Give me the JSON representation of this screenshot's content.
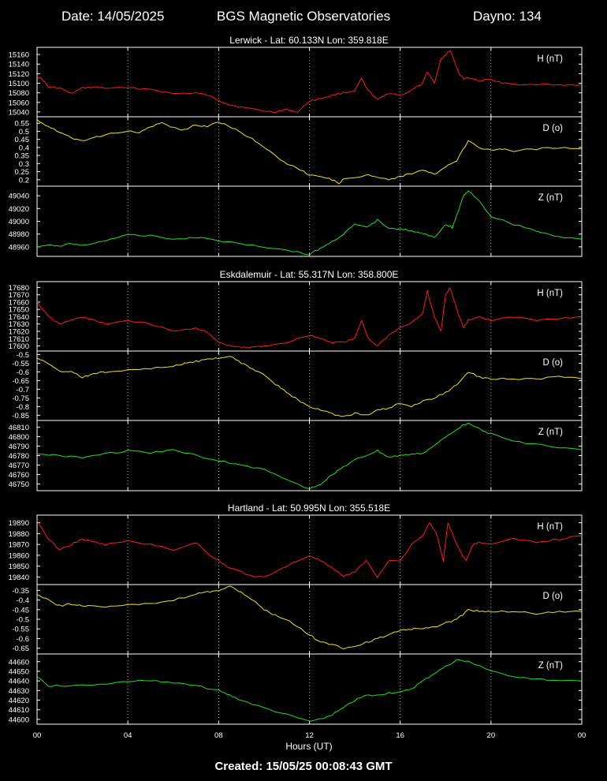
{
  "header": {
    "date": "Date: 14/05/2025",
    "title": "BGS Magnetic Observatories",
    "dayno": "Dayno: 134"
  },
  "footer": {
    "created": "Created: 15/05/25 00:08:43 GMT"
  },
  "xaxis": {
    "label": "Hours (UT)",
    "ticks": [
      "00",
      "04",
      "08",
      "12",
      "16",
      "20",
      "00"
    ],
    "range_hours": [
      0,
      24
    ]
  },
  "chart_data": [
    {
      "station": "Lerwick - Lat: 60.133N Lon: 359.818E",
      "panels": [
        {
          "type": "line",
          "label": "H (nT)",
          "color": "#ff1a1a",
          "ylim": [
            15030,
            15175
          ],
          "yticks": [
            "15160",
            "15140",
            "15120",
            "15100",
            "15080",
            "15060",
            "15040"
          ],
          "ytick_values": [
            15160,
            15140,
            15120,
            15100,
            15080,
            15060,
            15040
          ],
          "x": [
            0,
            0.3,
            0.5,
            1,
            1.5,
            2,
            2.5,
            3,
            4,
            5,
            6,
            7,
            7.5,
            8,
            8.5,
            9,
            10,
            10.5,
            11,
            11.5,
            12,
            12.5,
            13,
            13.5,
            14,
            14.3,
            14.5,
            14.7,
            15,
            15.5,
            16,
            16.5,
            17,
            17.2,
            17.5,
            17.8,
            18,
            18.2,
            18.4,
            18.6,
            18.8,
            19,
            19.5,
            20,
            20.5,
            21,
            22,
            23,
            24
          ],
          "y": [
            15115,
            15105,
            15092,
            15090,
            15078,
            15090,
            15092,
            15090,
            15090,
            15088,
            15078,
            15080,
            15075,
            15065,
            15055,
            15050,
            15042,
            15040,
            15045,
            15040,
            15063,
            15068,
            15075,
            15080,
            15085,
            15110,
            15090,
            15080,
            15065,
            15080,
            15075,
            15085,
            15100,
            15125,
            15100,
            15150,
            15160,
            15170,
            15145,
            15120,
            15110,
            15112,
            15105,
            15108,
            15100,
            15098,
            15098,
            15096,
            15097
          ]
        },
        {
          "type": "line",
          "label": "D (o)",
          "color": "#f0e020",
          "ylim": [
            0.16,
            0.59
          ],
          "yticks": [
            "0.55",
            "0.5",
            "0.45",
            "0.4",
            "0.35",
            "0.3",
            "0.25",
            "0.2"
          ],
          "ytick_values": [
            0.55,
            0.5,
            0.45,
            0.4,
            0.35,
            0.3,
            0.25,
            0.2
          ],
          "x": [
            0,
            0.5,
            1,
            1.5,
            2,
            2.5,
            3,
            4,
            4.5,
            5,
            5.5,
            6,
            6.5,
            7,
            7.5,
            8,
            8.5,
            9,
            9.5,
            10,
            10.5,
            11,
            11.5,
            12,
            12.5,
            13,
            13.3,
            13.5,
            14,
            14.5,
            15,
            15.5,
            16,
            16.5,
            17,
            17.5,
            18,
            18.5,
            19,
            19.5,
            20,
            20.5,
            21,
            22,
            23,
            24
          ],
          "y": [
            0.57,
            0.53,
            0.49,
            0.46,
            0.44,
            0.46,
            0.48,
            0.5,
            0.49,
            0.53,
            0.55,
            0.52,
            0.51,
            0.54,
            0.53,
            0.56,
            0.53,
            0.49,
            0.45,
            0.4,
            0.35,
            0.3,
            0.27,
            0.23,
            0.22,
            0.2,
            0.18,
            0.2,
            0.21,
            0.23,
            0.22,
            0.2,
            0.22,
            0.24,
            0.26,
            0.23,
            0.28,
            0.32,
            0.44,
            0.4,
            0.38,
            0.39,
            0.38,
            0.39,
            0.4,
            0.39
          ]
        },
        {
          "type": "line",
          "label": "Z (nT)",
          "color": "#20e020",
          "ylim": [
            48945,
            49055
          ],
          "yticks": [
            "49040",
            "49020",
            "49000",
            "48980",
            "48960"
          ],
          "ytick_values": [
            49040,
            49020,
            49000,
            48980,
            48960
          ],
          "x": [
            0,
            0.5,
            1,
            1.5,
            2,
            3,
            4,
            5,
            6,
            7,
            8,
            9,
            10,
            11,
            12,
            12.5,
            13,
            13.5,
            14,
            14.5,
            15,
            15.5,
            16,
            16.5,
            17,
            17.5,
            18,
            18.3,
            18.5,
            18.8,
            19,
            19.5,
            20,
            21,
            22,
            23,
            24
          ],
          "y": [
            48960,
            48962,
            48962,
            48965,
            48962,
            48970,
            48978,
            48978,
            48972,
            48975,
            48970,
            48965,
            48960,
            48955,
            48948,
            48958,
            48968,
            48980,
            48995,
            48990,
            49002,
            48990,
            48988,
            48985,
            48980,
            48975,
            48995,
            48990,
            49010,
            49040,
            49048,
            49030,
            49008,
            48995,
            48985,
            48975,
            48972
          ]
        }
      ]
    },
    {
      "station": "Eskdalemuir - Lat: 55.317N Lon: 358.800E",
      "panels": [
        {
          "type": "line",
          "label": "H (nT)",
          "color": "#ff1a1a",
          "ylim": [
            17593,
            17688
          ],
          "yticks": [
            "17680",
            "17670",
            "17660",
            "17650",
            "17640",
            "17630",
            "17620",
            "17610",
            "17600"
          ],
          "ytick_values": [
            17680,
            17670,
            17660,
            17650,
            17640,
            17630,
            17620,
            17610,
            17600
          ],
          "x": [
            0,
            0.5,
            1,
            1.5,
            2,
            2.5,
            3,
            4,
            5,
            6,
            7,
            7.5,
            8,
            8.5,
            9,
            9.5,
            10,
            11,
            12,
            12.5,
            13,
            13.5,
            14,
            14.3,
            14.6,
            15,
            15.5,
            16,
            16.5,
            17,
            17.2,
            17.5,
            17.8,
            18,
            18.2,
            18.4,
            18.6,
            18.8,
            19,
            19.5,
            20,
            21,
            22,
            23,
            24
          ],
          "y": [
            17660,
            17640,
            17630,
            17635,
            17640,
            17635,
            17630,
            17635,
            17630,
            17620,
            17625,
            17618,
            17605,
            17600,
            17598,
            17598,
            17600,
            17605,
            17615,
            17610,
            17605,
            17605,
            17610,
            17635,
            17610,
            17600,
            17615,
            17625,
            17632,
            17645,
            17675,
            17640,
            17620,
            17670,
            17680,
            17660,
            17640,
            17625,
            17635,
            17640,
            17635,
            17640,
            17635,
            17638,
            17640
          ]
        },
        {
          "type": "line",
          "label": "D (o)",
          "color": "#f0e020",
          "ylim": [
            -0.88,
            -0.48
          ],
          "yticks": [
            "-0.5",
            "-0.55",
            "-0.6",
            "-0.65",
            "-0.7",
            "-0.75",
            "-0.8",
            "-0.85"
          ],
          "ytick_values": [
            -0.5,
            -0.55,
            -0.6,
            -0.65,
            -0.7,
            -0.75,
            -0.8,
            -0.85
          ],
          "x": [
            0,
            0.5,
            1,
            1.5,
            2,
            2.5,
            3,
            4,
            5,
            6,
            6.5,
            7,
            7.5,
            8,
            8.5,
            9,
            9.5,
            10,
            10.5,
            11,
            11.5,
            12,
            12.5,
            13,
            13.5,
            14,
            14.5,
            15,
            15.5,
            16,
            16.5,
            17,
            17.5,
            18,
            18.5,
            19,
            19.5,
            20,
            21,
            22,
            23,
            24
          ],
          "y": [
            -0.52,
            -0.55,
            -0.6,
            -0.6,
            -0.63,
            -0.61,
            -0.6,
            -0.59,
            -0.58,
            -0.57,
            -0.55,
            -0.54,
            -0.53,
            -0.52,
            -0.51,
            -0.55,
            -0.58,
            -0.62,
            -0.67,
            -0.72,
            -0.76,
            -0.8,
            -0.82,
            -0.84,
            -0.86,
            -0.84,
            -0.85,
            -0.82,
            -0.81,
            -0.78,
            -0.8,
            -0.77,
            -0.75,
            -0.72,
            -0.67,
            -0.6,
            -0.63,
            -0.64,
            -0.64,
            -0.64,
            -0.63,
            -0.64
          ]
        },
        {
          "type": "line",
          "label": "Z (nT)",
          "color": "#20e020",
          "ylim": [
            46743,
            46817
          ],
          "yticks": [
            "46810",
            "46800",
            "46790",
            "46780",
            "46770",
            "46760",
            "46750"
          ],
          "ytick_values": [
            46810,
            46800,
            46790,
            46780,
            46770,
            46760,
            46750
          ],
          "x": [
            0,
            1,
            2,
            3,
            4,
            5,
            6,
            7,
            8,
            9,
            10,
            11,
            12,
            12.5,
            13,
            13.5,
            14,
            14.5,
            15,
            15.5,
            16,
            16.5,
            17,
            17.5,
            18,
            18.5,
            19,
            19.5,
            20,
            21,
            22,
            23,
            24
          ],
          "y": [
            46782,
            46780,
            46778,
            46782,
            46785,
            46783,
            46786,
            46780,
            46775,
            46770,
            46765,
            46755,
            46745,
            46750,
            46760,
            46768,
            46775,
            46780,
            46785,
            46778,
            46780,
            46782,
            46782,
            46790,
            46800,
            46808,
            46815,
            46808,
            46803,
            46795,
            46792,
            46788,
            46786
          ]
        }
      ]
    },
    {
      "station": "Hartland - Lat: 50.995N Lon: 355.518E",
      "panels": [
        {
          "type": "line",
          "label": "H (nT)",
          "color": "#ff1a1a",
          "ylim": [
            19833,
            19897
          ],
          "yticks": [
            "19890",
            "19880",
            "19870",
            "19860",
            "19850",
            "19840"
          ],
          "ytick_values": [
            19890,
            19880,
            19870,
            19860,
            19850,
            19840
          ],
          "x": [
            0,
            0.5,
            1,
            1.5,
            2,
            2.5,
            3,
            4,
            5,
            6,
            7,
            7.5,
            8,
            8.5,
            9,
            9.5,
            10,
            11,
            12,
            12.5,
            13,
            13.5,
            14,
            14.5,
            15,
            15.5,
            16,
            16.5,
            17,
            17.3,
            17.6,
            17.9,
            18.1,
            18.3,
            18.6,
            18.9,
            19.2,
            19.5,
            20,
            21,
            22,
            23,
            24
          ],
          "y": [
            19892,
            19875,
            19865,
            19870,
            19875,
            19872,
            19870,
            19873,
            19870,
            19865,
            19872,
            19862,
            19855,
            19848,
            19845,
            19840,
            19840,
            19850,
            19860,
            19855,
            19848,
            19840,
            19845,
            19855,
            19840,
            19855,
            19855,
            19870,
            19878,
            19890,
            19880,
            19855,
            19890,
            19880,
            19865,
            19855,
            19870,
            19872,
            19870,
            19875,
            19872,
            19875,
            19878
          ]
        },
        {
          "type": "line",
          "label": "D (o)",
          "color": "#f0e020",
          "ylim": [
            -0.68,
            -0.32
          ],
          "yticks": [
            "-0.35",
            "-0.4",
            "-0.45",
            "-0.5",
            "-0.55",
            "-0.6",
            "-0.65"
          ],
          "ytick_values": [
            -0.35,
            -0.4,
            -0.45,
            -0.5,
            -0.55,
            -0.6,
            -0.65
          ],
          "x": [
            0,
            0.5,
            1,
            1.5,
            2,
            2.5,
            3,
            4,
            5,
            6,
            7,
            7.5,
            8,
            8.5,
            9,
            9.5,
            10,
            10.5,
            11,
            11.5,
            12,
            12.5,
            13,
            13.5,
            14,
            14.5,
            15,
            15.5,
            16,
            16.5,
            17,
            17.5,
            18,
            18.5,
            19,
            19.5,
            20,
            21,
            22,
            23,
            24
          ],
          "y": [
            -0.37,
            -0.4,
            -0.43,
            -0.42,
            -0.43,
            -0.43,
            -0.44,
            -0.42,
            -0.42,
            -0.4,
            -0.37,
            -0.36,
            -0.35,
            -0.33,
            -0.36,
            -0.4,
            -0.45,
            -0.48,
            -0.5,
            -0.54,
            -0.58,
            -0.62,
            -0.63,
            -0.65,
            -0.64,
            -0.62,
            -0.6,
            -0.58,
            -0.56,
            -0.55,
            -0.55,
            -0.54,
            -0.52,
            -0.5,
            -0.45,
            -0.46,
            -0.46,
            -0.46,
            -0.47,
            -0.46,
            -0.46
          ]
        },
        {
          "type": "line",
          "label": "Z (nT)",
          "color": "#20e020",
          "ylim": [
            44595,
            44668
          ],
          "yticks": [
            "44660",
            "44650",
            "44640",
            "44630",
            "44620",
            "44610",
            "44600"
          ],
          "ytick_values": [
            44660,
            44650,
            44640,
            44630,
            44620,
            44610,
            44600
          ],
          "x": [
            0,
            0.5,
            1,
            2,
            3,
            4,
            5,
            6,
            7,
            8,
            8.5,
            9,
            10,
            11,
            12,
            12.5,
            13,
            13.5,
            14,
            14.5,
            15,
            15.5,
            16,
            16.5,
            17,
            17.5,
            18,
            18.5,
            19,
            19.5,
            20,
            21,
            22,
            23,
            24
          ],
          "y": [
            44645,
            44635,
            44635,
            44635,
            44637,
            44640,
            44640,
            44638,
            44635,
            44630,
            44625,
            44620,
            44612,
            44605,
            44598,
            44600,
            44605,
            44612,
            44620,
            44625,
            44625,
            44628,
            44628,
            44632,
            44640,
            44648,
            44655,
            44662,
            44660,
            44656,
            44650,
            44645,
            44642,
            44640,
            44640
          ]
        }
      ]
    }
  ]
}
